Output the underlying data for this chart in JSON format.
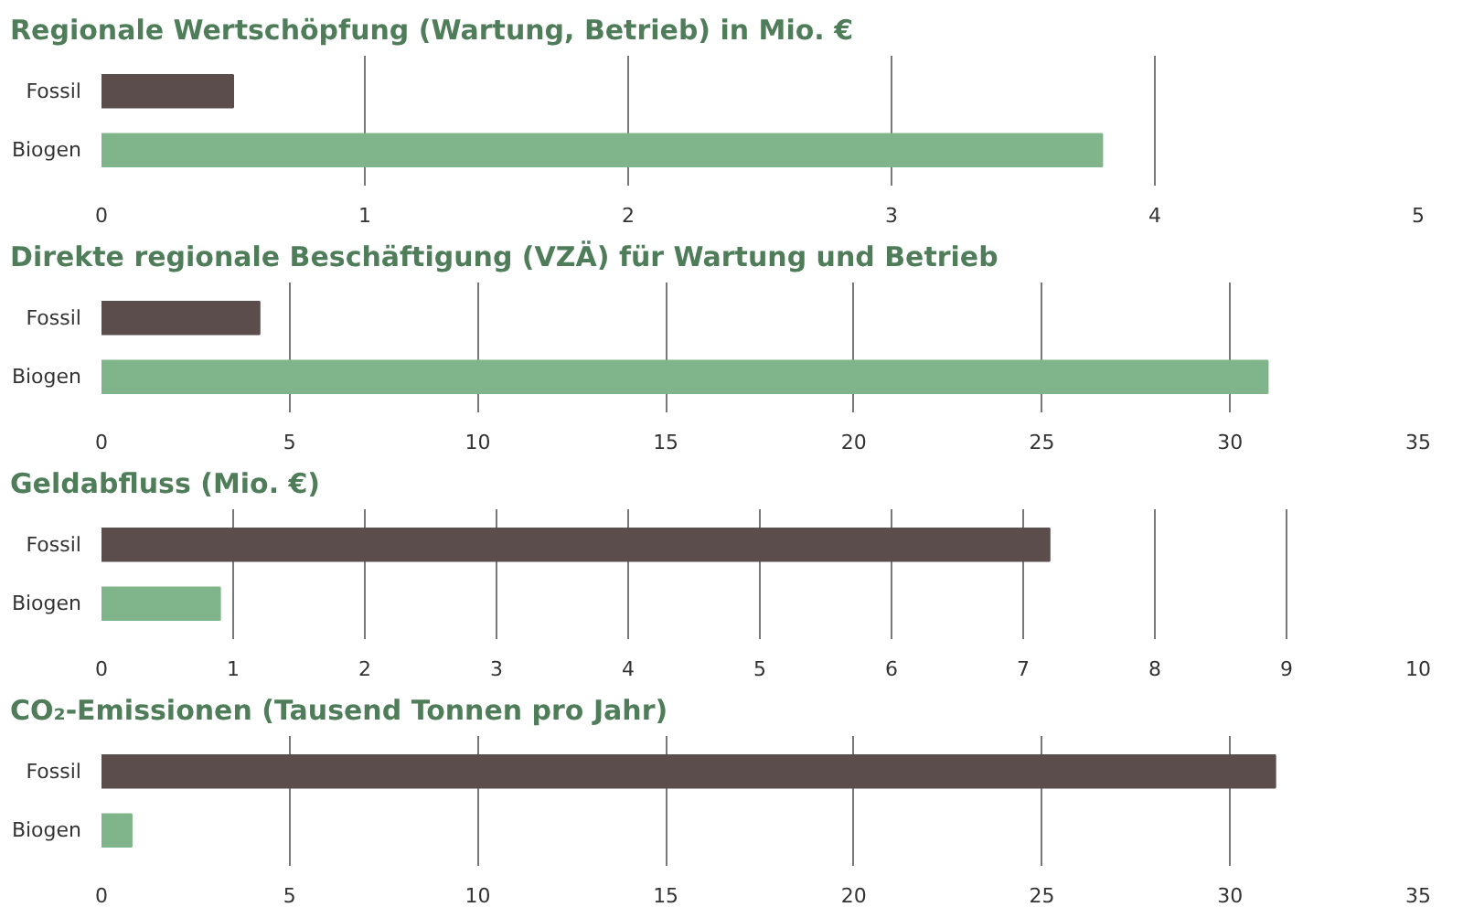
{
  "chart_data": [
    {
      "type": "bar",
      "orientation": "horizontal",
      "title": "Regionale Wertschöpfung (Wartung, Betrieb) in Mio. €",
      "categories": [
        "Fossil",
        "Biogen"
      ],
      "values": [
        0.5,
        3.8
      ],
      "colors": [
        "#5b4d4b",
        "#80b48a"
      ],
      "xlim": [
        0,
        5
      ],
      "xticks": [
        0,
        1,
        2,
        3,
        4,
        5
      ],
      "grid": "x"
    },
    {
      "type": "bar",
      "orientation": "horizontal",
      "title": "Direkte regionale Beschäftigung (VZÄ) für Wartung und Betrieb",
      "categories": [
        "Fossil",
        "Biogen"
      ],
      "values": [
        4.2,
        31
      ],
      "colors": [
        "#5b4d4b",
        "#80b48a"
      ],
      "xlim": [
        0,
        35
      ],
      "xticks": [
        0,
        5,
        10,
        15,
        20,
        25,
        30,
        35
      ],
      "grid": "x"
    },
    {
      "type": "bar",
      "orientation": "horizontal",
      "title": "Geldabfluss (Mio. €)",
      "categories": [
        "Fossil",
        "Biogen"
      ],
      "values": [
        7.2,
        0.9
      ],
      "colors": [
        "#5b4d4b",
        "#80b48a"
      ],
      "xlim": [
        0,
        10
      ],
      "xticks": [
        0,
        1,
        2,
        3,
        4,
        5,
        6,
        7,
        8,
        9,
        10
      ],
      "grid": "x"
    },
    {
      "type": "bar",
      "orientation": "horizontal",
      "title": "CO₂-Emissionen (Tausend Tonnen pro Jahr)",
      "categories": [
        "Fossil",
        "Biogen"
      ],
      "values": [
        31.2,
        0.8
      ],
      "colors": [
        "#5b4d4b",
        "#80b48a"
      ],
      "xlim": [
        0,
        35
      ],
      "xticks": [
        0,
        5,
        10,
        15,
        20,
        25,
        30,
        35
      ],
      "grid": "x"
    }
  ]
}
